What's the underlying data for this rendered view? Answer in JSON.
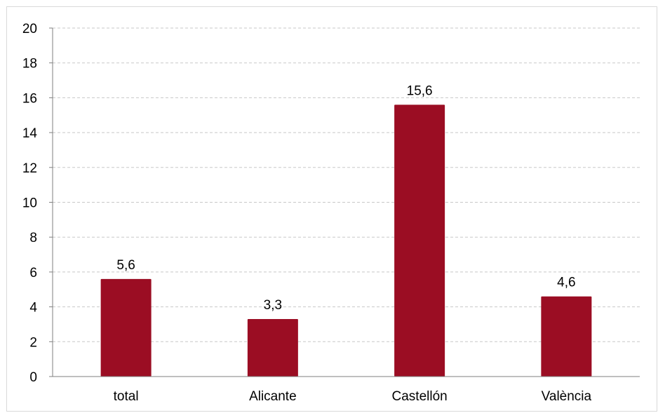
{
  "chart_data": {
    "type": "bar",
    "categories": [
      "total",
      "Alicante",
      "Castellón",
      "València"
    ],
    "values": [
      5.6,
      3.3,
      15.6,
      4.6
    ],
    "value_labels": [
      "5,6",
      "3,3",
      "15,6",
      "4,6"
    ],
    "title": "",
    "xlabel": "",
    "ylabel": "",
    "ylim": [
      0,
      20
    ],
    "yticks": [
      0,
      2,
      4,
      6,
      8,
      10,
      12,
      14,
      16,
      18,
      20
    ],
    "grid": true,
    "legend": "none",
    "colors": {
      "bar": "#9b0d23",
      "grid": "#c8c8c8",
      "axis": "#7f7f7f",
      "text": "#000000"
    }
  }
}
